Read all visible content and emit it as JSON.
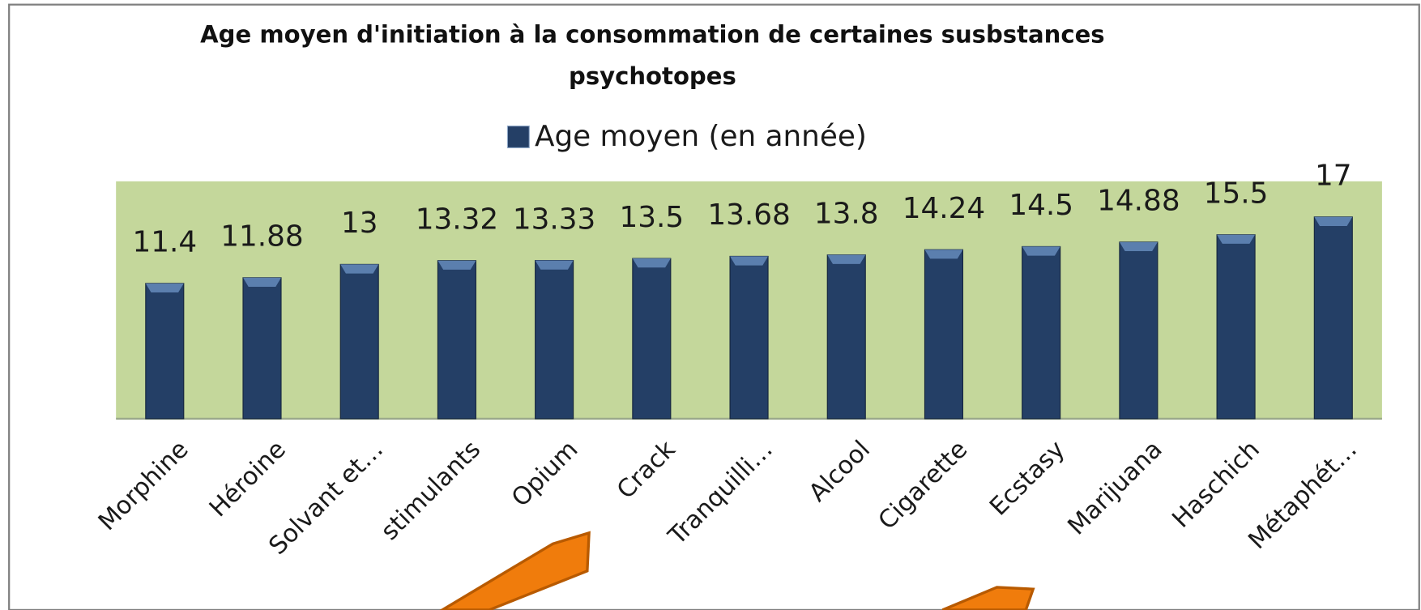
{
  "chart_data": {
    "type": "bar",
    "title": "Age moyen d'initiation à la consommation de certaines susbstances psychotopes",
    "categories": [
      "Morphine",
      "Héroine",
      "Solvant et…",
      "stimulants",
      "Opium",
      "Crack",
      "Tranquilli…",
      "Alcool",
      "Cigarette",
      "Ecstasy",
      "Marijuana",
      "Haschich",
      "Métaphét…"
    ],
    "series": [
      {
        "name": "Age moyen (en année)",
        "color": "#243f66",
        "values": [
          11.4,
          11.88,
          13,
          13.32,
          13.33,
          13.5,
          13.68,
          13.8,
          14.24,
          14.5,
          14.88,
          15.5,
          17
        ]
      }
    ],
    "ylim": [
      0,
      20
    ],
    "plot_background": "#c4d79b"
  }
}
